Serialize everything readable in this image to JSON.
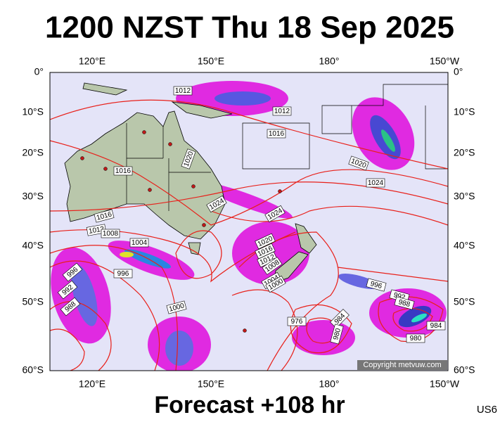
{
  "title": "1200 NZST Thu 18 Sep 2025",
  "footer": "Forecast +108 hr",
  "code": "US6",
  "copyright": "Copyright metvuw.com",
  "axes": {
    "top": [
      "120°E",
      "150°E",
      "180°",
      "150°W"
    ],
    "bottom": [
      "120°E",
      "150°E",
      "180°",
      "150°W"
    ],
    "left": [
      "0°",
      "10°S",
      "20°S",
      "30°S",
      "40°S",
      "50°S",
      "60°S"
    ],
    "right": [
      "0°",
      "10°S",
      "20°S",
      "30°S",
      "40°S",
      "50°S",
      "60°S"
    ]
  },
  "isobar_labels": [
    "1012",
    "1012",
    "1016",
    "1020",
    "1016",
    "1020",
    "1024",
    "1024",
    "1016",
    "1012",
    "1008",
    "1004",
    "1024",
    "1020",
    "1016",
    "1012",
    "1008",
    "1004",
    "1000",
    "996",
    "996",
    "992",
    "988",
    "996",
    "992",
    "988",
    "1000",
    "976",
    "984",
    "980",
    "984",
    "980"
  ]
}
